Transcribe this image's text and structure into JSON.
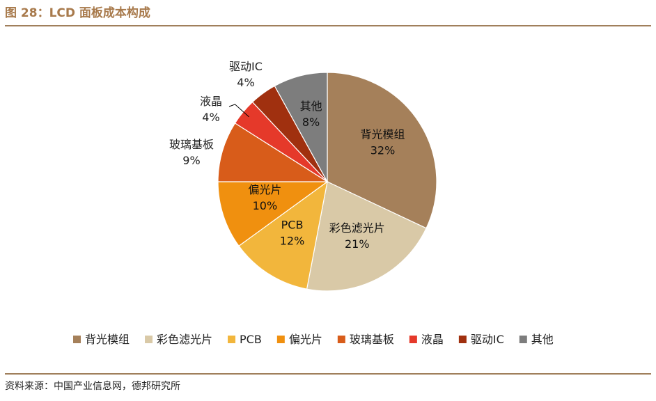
{
  "header": {
    "title": "图 28：LCD 面板成本构成"
  },
  "footer": {
    "source": "资料来源：中国产业信息网，德邦研究所"
  },
  "chart_data": {
    "type": "pie",
    "title": "",
    "unit": "%",
    "legend_position": "bottom",
    "slices": [
      {
        "label": "背光模组",
        "value": 32,
        "display": "32%",
        "color": "#a5805a"
      },
      {
        "label": "彩色滤光片",
        "value": 21,
        "display": "21%",
        "color": "#d9c9a7"
      },
      {
        "label": "PCB",
        "value": 12,
        "display": "12%",
        "color": "#f2b63c"
      },
      {
        "label": "偏光片",
        "value": 10,
        "display": "10%",
        "color": "#f0900f"
      },
      {
        "label": "玻璃基板",
        "value": 9,
        "display": "9%",
        "color": "#d85c1a"
      },
      {
        "label": "液晶",
        "value": 4,
        "display": "4%",
        "color": "#e5392a"
      },
      {
        "label": "驱动IC",
        "value": 4,
        "display": "4%",
        "color": "#a0300f"
      },
      {
        "label": "其他",
        "value": 8,
        "display": "8%",
        "color": "#7d7d7d"
      }
    ]
  }
}
